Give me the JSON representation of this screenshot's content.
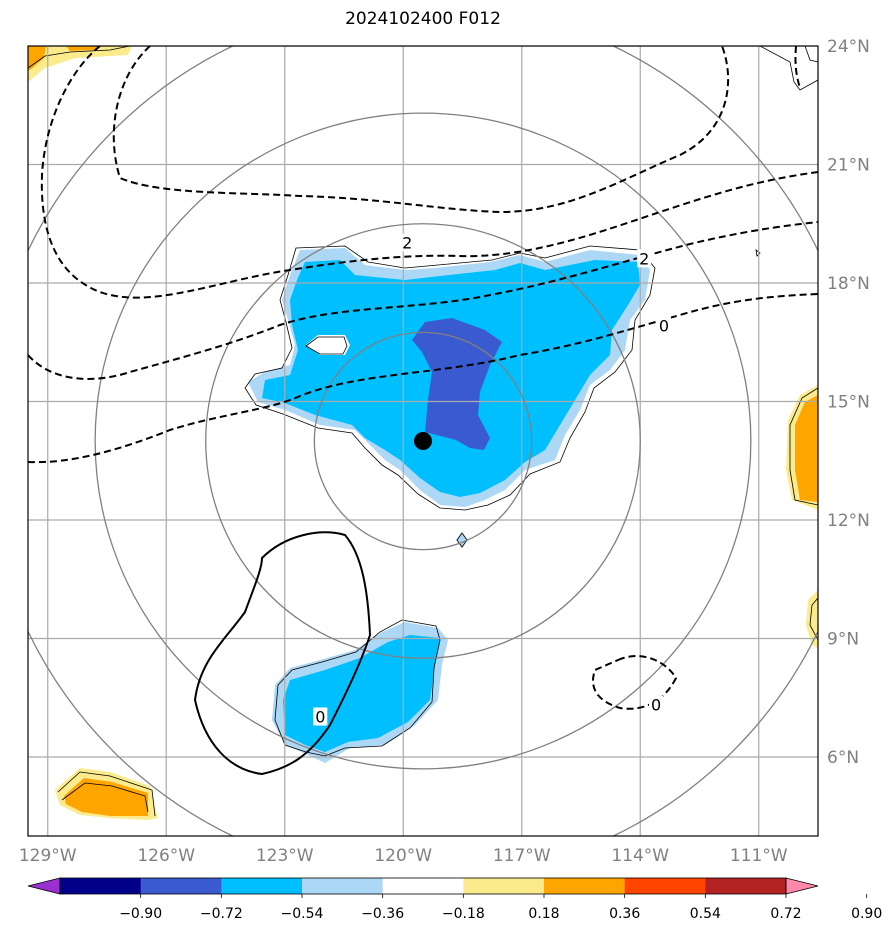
{
  "title": "2024102400 F012",
  "map": {
    "lon_range": [
      -129.5,
      -109.5
    ],
    "lat_range": [
      4,
      24
    ],
    "lon_ticks": [
      {
        "value": -129,
        "label": "129°W"
      },
      {
        "value": -126,
        "label": "126°W"
      },
      {
        "value": -123,
        "label": "123°W"
      },
      {
        "value": -120,
        "label": "120°W"
      },
      {
        "value": -117,
        "label": "117°W"
      },
      {
        "value": -114,
        "label": "114°W"
      },
      {
        "value": -111,
        "label": "111°W"
      }
    ],
    "lat_ticks": [
      {
        "value": 6,
        "label": "6°N"
      },
      {
        "value": 9,
        "label": "9°N"
      },
      {
        "value": 12,
        "label": "12°N"
      },
      {
        "value": 15,
        "label": "15°N"
      },
      {
        "value": 18,
        "label": "18°N"
      },
      {
        "value": 21,
        "label": "21°N"
      },
      {
        "value": 24,
        "label": "24°N"
      }
    ],
    "storm_center": {
      "lon": -119.5,
      "lat": 14.0
    },
    "range_ring_radius_deg": [
      2.75,
      5.5,
      8.3,
      11.1
    ],
    "contour_labels": [
      {
        "text": "2",
        "lon": -119.9,
        "lat": 19.0
      },
      {
        "text": "2",
        "lon": -113.9,
        "lat": 18.6
      },
      {
        "text": "0",
        "lon": -113.4,
        "lat": 16.9
      },
      {
        "text": "0",
        "lon": -122.1,
        "lat": 7.0
      },
      {
        "text": "0",
        "lon": -113.6,
        "lat": 7.3
      }
    ]
  },
  "colorbar": {
    "colors": [
      "#9b30d0",
      "#00008b",
      "#3a5bd0",
      "#00bfff",
      "#add8f5",
      "#ffffff",
      "#fbeb8d",
      "#ffa500",
      "#ff4500",
      "#b22222",
      "#ff88aa"
    ],
    "labels": [
      "−0.90",
      "−0.72",
      "−0.54",
      "−0.36",
      "−0.18",
      "0.18",
      "0.36",
      "0.54",
      "0.72",
      "0.90"
    ]
  }
}
